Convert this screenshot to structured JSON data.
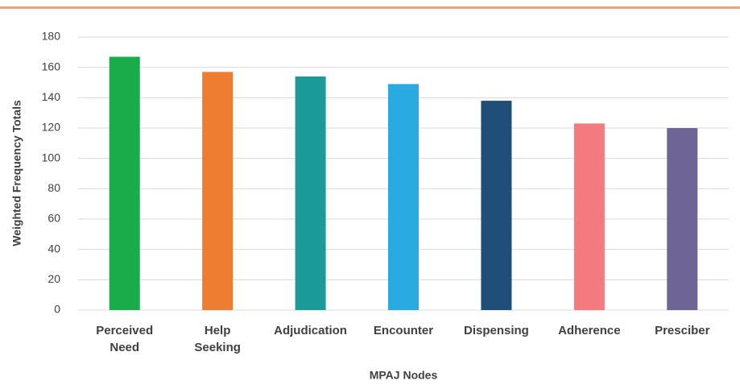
{
  "chart_data": {
    "type": "bar",
    "xlabel": "MPAJ Nodes",
    "ylabel": "Weighted Frequency Totals",
    "categories": [
      "Perceived\nNeed",
      "Help\nSeeking",
      "Adjudication",
      "Encounter",
      "Dispensing",
      "Adherence",
      "Presciber"
    ],
    "values": [
      167,
      157,
      154,
      149,
      138,
      123,
      120
    ],
    "colors": [
      "#1aab4b",
      "#ee7d31",
      "#1b9a9a",
      "#29abe2",
      "#1f4e79",
      "#f47a80",
      "#6f6496"
    ],
    "ylim": [
      0,
      180
    ],
    "yticks": [
      0,
      20,
      40,
      60,
      80,
      100,
      120,
      140,
      160,
      180
    ],
    "grid": true
  }
}
